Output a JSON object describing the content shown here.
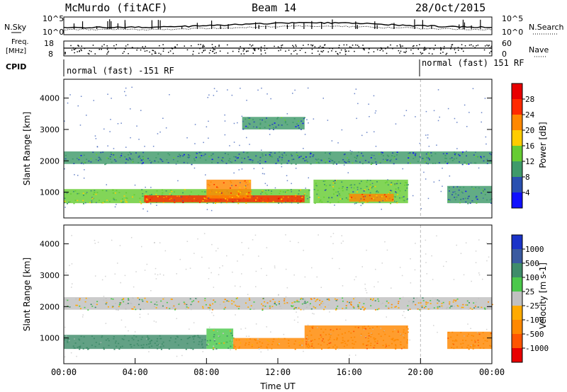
{
  "header": {
    "station": "McMurdo (fitACF)",
    "beam": "Beam 14",
    "date": "28/Oct/2015"
  },
  "top_panels": {
    "nsky_label": "N.Sky",
    "nsearch_label": "N.Search",
    "nsky_ticks": [
      "10^5",
      "10^0"
    ],
    "nsearch_ticks": [
      "10^5",
      "10^0"
    ],
    "freq_label": "Freq.",
    "freq_unit": "[MHz]",
    "freq_ticks": [
      "18",
      "8"
    ],
    "nave_label": "Nave",
    "nave_ticks": [
      "60",
      "0"
    ],
    "cpid_label": "CPID",
    "cpid_segments": [
      {
        "label": "normal (fast) -151 RF",
        "start_hour": 0,
        "end_hour": 20
      },
      {
        "label": "normal (fast) 151 RF",
        "start_hour": 20,
        "end_hour": 24
      }
    ]
  },
  "chart_data": [
    {
      "type": "heatmap",
      "name": "power",
      "ylabel": "Slant Range [km]",
      "xlabel": "",
      "xlim": [
        0,
        24
      ],
      "ylim": [
        180,
        4600
      ],
      "yticks": [
        "1000",
        "2000",
        "3000",
        "4000"
      ],
      "colorbar_label": "Power [dB]",
      "colorbar_ticks": [
        "4",
        "8",
        "12",
        "16",
        "20",
        "24",
        "28"
      ],
      "colorbar_colors": [
        "#1010ff",
        "#2a50b0",
        "#3f9a6a",
        "#66cc33",
        "#ffcc00",
        "#ff8800",
        "#ff2a00",
        "#e80000"
      ],
      "regions": [
        {
          "x": [
            0.0,
            13.8
          ],
          "y": [
            650,
            1100
          ],
          "value": 14
        },
        {
          "x": [
            4.5,
            13.5
          ],
          "y": [
            680,
            900
          ],
          "value": 24
        },
        {
          "x": [
            8.0,
            10.5
          ],
          "y": [
            800,
            1400
          ],
          "value": 22
        },
        {
          "x": [
            14.0,
            19.3
          ],
          "y": [
            650,
            1400
          ],
          "value": 12
        },
        {
          "x": [
            16.0,
            18.5
          ],
          "y": [
            700,
            950
          ],
          "value": 22
        },
        {
          "x": [
            0.0,
            24.0
          ],
          "y": [
            1900,
            2300
          ],
          "value": 8
        },
        {
          "x": [
            10.0,
            13.5
          ],
          "y": [
            3000,
            3400
          ],
          "value": 8
        },
        {
          "x": [
            21.5,
            24.0
          ],
          "y": [
            650,
            1200
          ],
          "value": 8
        }
      ]
    },
    {
      "type": "heatmap",
      "name": "velocity",
      "ylabel": "Slant Range [km]",
      "xlabel": "Time UT",
      "xlim": [
        0,
        24
      ],
      "ylim": [
        180,
        4600
      ],
      "xticks": [
        "00:00",
        "04:00",
        "08:00",
        "12:00",
        "16:00",
        "20:00",
        "00:00"
      ],
      "yticks": [
        "1000",
        "2000",
        "3000",
        "4000"
      ],
      "colorbar_label": "Velocity [m s-1]",
      "colorbar_ticks": [
        "1000",
        "500",
        "100",
        "25",
        "-25",
        "-100",
        "-500",
        "-1000"
      ],
      "colorbar_colors": [
        "#1a33c8",
        "#3a5aa0",
        "#3f8c6a",
        "#4bc84b",
        "#c0c0c0",
        "#ffaa00",
        "#ff8800",
        "#ff5500",
        "#e80000"
      ],
      "regions": [
        {
          "x": [
            0.0,
            8.0
          ],
          "y": [
            650,
            1100
          ],
          "value": 300
        },
        {
          "x": [
            8.0,
            9.5
          ],
          "y": [
            650,
            1300
          ],
          "value": 60
        },
        {
          "x": [
            9.5,
            13.5
          ],
          "y": [
            650,
            1000
          ],
          "value": -150
        },
        {
          "x": [
            13.5,
            19.3
          ],
          "y": [
            650,
            1400
          ],
          "value": -400
        },
        {
          "x": [
            21.5,
            24.0
          ],
          "y": [
            650,
            1200
          ],
          "value": -400
        },
        {
          "x": [
            0.0,
            24.0
          ],
          "y": [
            1900,
            2300
          ],
          "value": 0
        }
      ]
    }
  ]
}
